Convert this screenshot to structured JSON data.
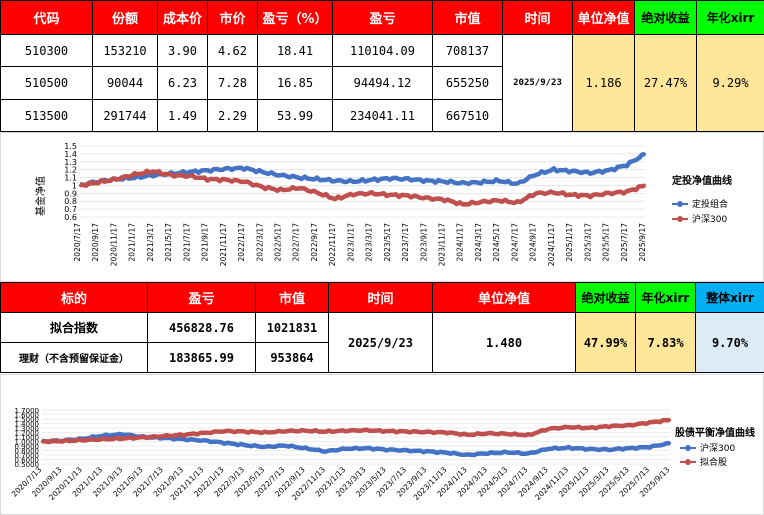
{
  "top_table": {
    "headers": [
      "代码",
      "份额",
      "成本价",
      "市价",
      "盈亏（%）",
      "盈亏",
      "市值",
      "时间",
      "单位净值",
      "绝对收益",
      "年化xirr"
    ],
    "rows": [
      [
        "510300",
        "153210",
        "3.90",
        "4.62",
        "18.41",
        "110104.09",
        "708137"
      ],
      [
        "510500",
        "90044",
        "6.23",
        "7.28",
        "16.85",
        "94494.12",
        "655250"
      ],
      [
        "513500",
        "291744",
        "1.49",
        "2.29",
        "53.99",
        "234041.11",
        "667510"
      ]
    ],
    "time": "2025/9/23",
    "unit_nav": "1.186",
    "abs_return": "27.47%",
    "xirr": "9.29%"
  },
  "mid_table": {
    "headers": [
      "标的",
      "盈亏",
      "市值",
      "时间",
      "单位净值",
      "绝对收益",
      "年化xirr",
      "整体xirr"
    ],
    "rows": [
      [
        "拟合指数",
        "456828.76",
        "1021831"
      ],
      [
        "理财（不含预留保证金）",
        "183865.99",
        "953864"
      ]
    ],
    "time": "2025/9/23",
    "unit_nav": "1.480",
    "abs_return": "47.99%",
    "xirr": "7.83%",
    "overall_xirr": "9.70%"
  },
  "chart1": {
    "type": "line",
    "title": "定投净值曲线",
    "ylabel": "基金净值",
    "yticks": [
      "1.5",
      "1.4",
      "1.3",
      "1.2",
      "1.1",
      "1",
      "0.9",
      "0.8",
      "0.7",
      "0.6"
    ],
    "ylim": [
      0.6,
      1.5
    ],
    "xticks": [
      "2020/7/17",
      "2020/9/17",
      "2020/11/17",
      "2021/1/17",
      "2021/3/17",
      "2021/5/17",
      "2021/7/17",
      "2021/9/17",
      "2021/11/17",
      "2022/1/17",
      "2022/3/17",
      "2022/5/17",
      "2022/7/17",
      "2022/9/17",
      "2022/11/17",
      "2023/1/17",
      "2023/3/17",
      "2023/5/17",
      "2023/7/17",
      "2023/9/17",
      "2023/11/17",
      "2024/1/17",
      "2024/3/17",
      "2024/5/17",
      "2024/7/17",
      "2024/9/17",
      "2024/11/17",
      "2025/1/17",
      "2025/3/17",
      "2025/5/17",
      "2025/7/17",
      "2025/9/17"
    ],
    "series": [
      {
        "name": "定投组合",
        "color": "#4472c4",
        "values": [
          1.0,
          1.05,
          1.08,
          1.1,
          1.13,
          1.15,
          1.17,
          1.19,
          1.21,
          1.22,
          1.17,
          1.13,
          1.1,
          1.08,
          1.06,
          1.05,
          1.07,
          1.09,
          1.08,
          1.06,
          1.05,
          1.03,
          1.04,
          1.06,
          1.02,
          1.14,
          1.2,
          1.18,
          1.16,
          1.19,
          1.26,
          1.4
        ]
      },
      {
        "name": "沪深300",
        "color": "#c0504d",
        "values": [
          1.0,
          1.04,
          1.08,
          1.14,
          1.18,
          1.13,
          1.12,
          1.08,
          1.07,
          1.05,
          0.98,
          0.94,
          0.97,
          0.91,
          0.83,
          0.89,
          0.9,
          0.88,
          0.87,
          0.84,
          0.82,
          0.76,
          0.79,
          0.81,
          0.78,
          0.9,
          0.91,
          0.88,
          0.87,
          0.9,
          0.92,
          1.0
        ]
      }
    ]
  },
  "chart2": {
    "type": "line",
    "title": "股债平衡净值曲线",
    "yticks": [
      "1.7000",
      "1.6000",
      "1.5000",
      "1.4000",
      "1.3000",
      "1.2000",
      "1.1000",
      "1.0000",
      "0.9000",
      "0.8000",
      "0.7000",
      "0.6000",
      "0.5000"
    ],
    "ylim": [
      0.5,
      1.7
    ],
    "xticks": [
      "2020/7/13",
      "2020/9/13",
      "2020/11/13",
      "2021/1/13",
      "2021/3/13",
      "2021/5/13",
      "2021/7/13",
      "2021/9/13",
      "2021/11/13",
      "2022/1/13",
      "2022/3/13",
      "2022/5/13",
      "2022/7/13",
      "2022/9/13",
      "2022/11/13",
      "2023/1/13",
      "2023/3/13",
      "2023/5/13",
      "2023/7/13",
      "2023/9/13",
      "2023/11/13",
      "2024/1/13",
      "2024/3/13",
      "2024/5/13",
      "2024/7/13",
      "2024/9/13",
      "2024/11/13",
      "2025/1/13",
      "2025/3/13",
      "2025/5/13",
      "2025/7/13",
      "2025/9/13"
    ],
    "series": [
      {
        "name": "沪深300",
        "color": "#4472c4",
        "values": [
          1.0,
          1.02,
          1.06,
          1.13,
          1.16,
          1.1,
          1.08,
          1.05,
          1.02,
          0.97,
          0.92,
          0.88,
          0.91,
          0.85,
          0.78,
          0.84,
          0.85,
          0.82,
          0.8,
          0.78,
          0.75,
          0.7,
          0.74,
          0.76,
          0.73,
          0.84,
          0.86,
          0.83,
          0.82,
          0.85,
          0.88,
          0.96
        ]
      },
      {
        "name": "拟合股",
        "color": "#c0504d",
        "values": [
          1.0,
          1.01,
          1.03,
          1.05,
          1.07,
          1.09,
          1.12,
          1.15,
          1.19,
          1.23,
          1.22,
          1.2,
          1.23,
          1.24,
          1.22,
          1.24,
          1.25,
          1.23,
          1.22,
          1.21,
          1.2,
          1.15,
          1.18,
          1.17,
          1.14,
          1.28,
          1.32,
          1.3,
          1.34,
          1.36,
          1.42,
          1.48
        ]
      }
    ]
  }
}
